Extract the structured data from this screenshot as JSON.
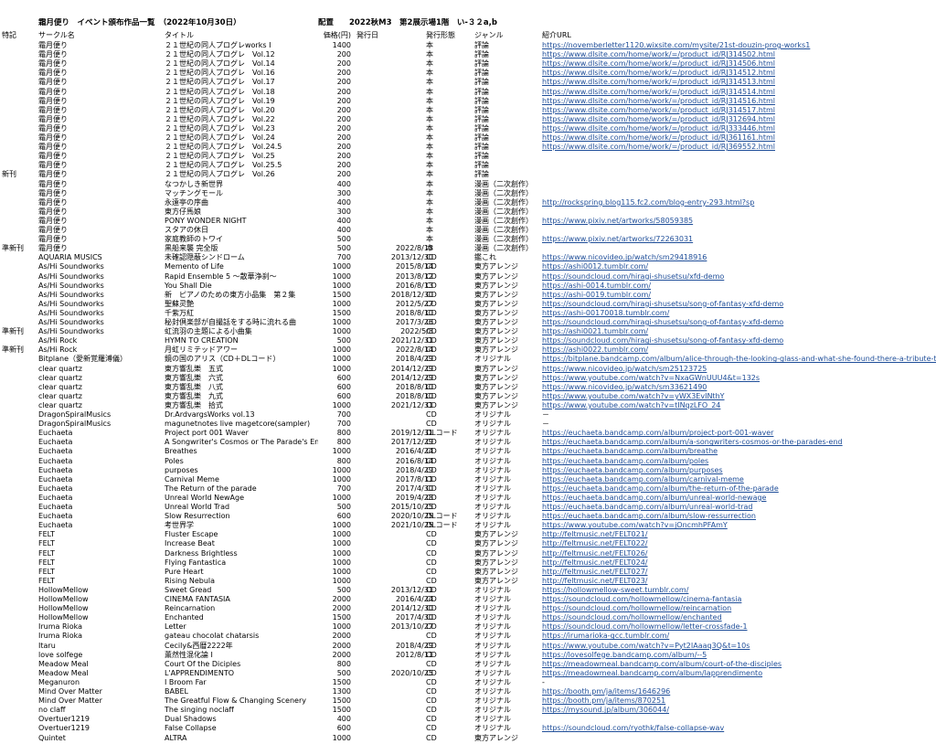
{
  "header": {
    "title": "霜月便り　イベント頒布作品一覧　（2022年10月30日）",
    "venue": "配置　　2022秋M3　第2展示場1階　い-３２a,b"
  },
  "columns": [
    "特記",
    "サークル名",
    "タイトル",
    "価格(円)",
    "発行日",
    "発行形態",
    "ジャンル",
    "紹介URL"
  ],
  "rows": [
    [
      "",
      "霜月便り",
      "２１世紀の同人プログレworks I",
      "1400",
      "",
      "本",
      "評論",
      "https://novemberletter1120.wixsite.com/mysite/21st-douzin-prog-works1"
    ],
    [
      "",
      "霜月便り",
      "２１世紀の同人プログレ　Vol.12",
      "200",
      "",
      "本",
      "評論",
      "https://www.dlsite.com/home/work/=/product_id/RJ314502.html"
    ],
    [
      "",
      "霜月便り",
      "２１世紀の同人プログレ　Vol.14",
      "200",
      "",
      "本",
      "評論",
      "https://www.dlsite.com/home/work/=/product_id/RJ314506.html"
    ],
    [
      "",
      "霜月便り",
      "２１世紀の同人プログレ　Vol.16",
      "200",
      "",
      "本",
      "評論",
      "https://www.dlsite.com/home/work/=/product_id/RJ314512.html"
    ],
    [
      "",
      "霜月便り",
      "２１世紀の同人プログレ　Vol.17",
      "200",
      "",
      "本",
      "評論",
      "https://www.dlsite.com/home/work/=/product_id/RJ314513.html"
    ],
    [
      "",
      "霜月便り",
      "２１世紀の同人プログレ　Vol.18",
      "200",
      "",
      "本",
      "評論",
      "https://www.dlsite.com/home/work/=/product_id/RJ314514.html"
    ],
    [
      "",
      "霜月便り",
      "２１世紀の同人プログレ　Vol.19",
      "200",
      "",
      "本",
      "評論",
      "https://www.dlsite.com/home/work/=/product_id/RJ314516.html"
    ],
    [
      "",
      "霜月便り",
      "２１世紀の同人プログレ　Vol.20",
      "200",
      "",
      "本",
      "評論",
      "https://www.dlsite.com/home/work/=/product_id/RJ314517.html"
    ],
    [
      "",
      "霜月便り",
      "２１世紀の同人プログレ　Vol.22",
      "200",
      "",
      "本",
      "評論",
      "https://www.dlsite.com/home/work/=/product_id/RJ312694.html"
    ],
    [
      "",
      "霜月便り",
      "２１世紀の同人プログレ　Vol.23",
      "200",
      "",
      "本",
      "評論",
      "https://www.dlsite.com/home/work/=/product_id/RJ333446.html"
    ],
    [
      "",
      "霜月便り",
      "２１世紀の同人プログレ　Vol.24",
      "200",
      "",
      "本",
      "評論",
      "https://www.dlsite.com/home/work/=/product_id/RJ361161.html"
    ],
    [
      "",
      "霜月便り",
      "２１世紀の同人プログレ　Vol.24.5",
      "200",
      "",
      "本",
      "評論",
      "https://www.dlsite.com/home/work/=/product_id/RJ369552.html"
    ],
    [
      "",
      "霜月便り",
      "２１世紀の同人プログレ　Vol.25",
      "200",
      "",
      "本",
      "評論",
      ""
    ],
    [
      "",
      "霜月便り",
      "２１世紀の同人プログレ　Vol.25.5",
      "200",
      "",
      "本",
      "評論",
      ""
    ],
    [
      "新刊",
      "霜月便り",
      "２１世紀の同人プログレ　Vol.26",
      "200",
      "",
      "本",
      "評論",
      ""
    ],
    [
      "",
      "霜月便り",
      "なつかしき新世界",
      "400",
      "",
      "本",
      "漫画（二次創作）",
      ""
    ],
    [
      "",
      "霜月便り",
      "マッチングモール",
      "300",
      "",
      "本",
      "漫画（二次創作）",
      ""
    ],
    [
      "",
      "霜月便り",
      "永遠亭の序曲",
      "400",
      "",
      "本",
      "漫画（二次創作）",
      "http://rockspring.blog115.fc2.com/blog-entry-293.html?sp"
    ],
    [
      "",
      "霜月便り",
      "東方仔馬娘",
      "300",
      "",
      "本",
      "漫画（二次創作）",
      ""
    ],
    [
      "",
      "霜月便り",
      "PONY WONDER NIGHT",
      "400",
      "",
      "本",
      "漫画（二次創作）",
      "https://www.pixiv.net/artworks/58059385"
    ],
    [
      "",
      "霜月便り",
      "スタアの休日",
      "400",
      "",
      "本",
      "漫画（二次創作）",
      ""
    ],
    [
      "",
      "霜月便り",
      "家庭教師のトワイ",
      "500",
      "",
      "本",
      "漫画（二次創作）",
      "https://www.pixiv.net/artworks/72263031"
    ],
    [
      "準新刊",
      "霜月便り",
      "黒船来襲 完全版",
      "500",
      "2022/8/13",
      "本",
      "漫画（二次創作）",
      ""
    ],
    [
      "",
      "AQUARIA MUSICS",
      "未確認隠蔽シンドローム",
      "700",
      "2013/12/30",
      "CD",
      "鑑これ",
      "https://www.nicovideo.jp/watch/sm29418916"
    ],
    [
      "",
      "As/Hi Soundworks",
      "Memento of Life",
      "1000",
      "2015/8/14",
      "CD",
      "東方アレンジ",
      "https://ashi0012.tumblr.com/"
    ],
    [
      "",
      "As/Hi Soundworks",
      "Rapid Ensemble 5 ～散華浄刹～",
      "1000",
      "2013/8/12",
      "CD",
      "東方アレンジ",
      "https://soundcloud.com/hiragi-shusetsu/xfd-demo"
    ],
    [
      "",
      "As/Hi Soundworks",
      "You Shall Die",
      "1000",
      "2016/8/13",
      "CD",
      "東方アレンジ",
      "https://ashi-0014.tumblr.com/"
    ],
    [
      "",
      "As/Hi Soundworks",
      "新　ピアノのための東方小品集　第２集",
      "1500",
      "2018/12/30",
      "CD",
      "東方アレンジ",
      "https://ashi-0019.tumblr.com/"
    ],
    [
      "",
      "As/Hi Soundworks",
      "聖蘇灵艶",
      "1000",
      "2012/5/27",
      "CD",
      "東方アレンジ",
      "https://soundcloud.com/hiragi-shusetsu/song-of-fantasy-xfd-demo"
    ],
    [
      "",
      "As/Hi Soundworks",
      "千紫万紅",
      "1500",
      "2018/8/10",
      "CD",
      "東方アレンジ",
      "https://ashi-00170018.tumblr.com/"
    ],
    [
      "",
      "As/Hi Soundworks",
      "秘封倶楽部が自撮話をする時に流れる曲",
      "1000",
      "2017/3/26",
      "CD",
      "東方アレンジ",
      "https://soundcloud.com/hiragi-shusetsu/song-of-fantasy-xfd-demo"
    ],
    [
      "準新刊",
      "As/Hi Soundworks",
      "虹流羽の主題による小曲集",
      "1000",
      "2022/5/8",
      "CD",
      "東方アレンジ",
      "https://ashi0021.tumblr.com/"
    ],
    [
      "",
      "As/Hi Rock",
      "HYMN TO CREATION",
      "500",
      "2021/12/31",
      "CD",
      "東方アレンジ",
      "https://soundcloud.com/hiragi-shusetsu/song-of-fantasy-xfd-demo"
    ],
    [
      "準新刊",
      "As/Hi Rock",
      "月虹リミテッドアワー",
      "1000",
      "2022/8/14",
      "CD",
      "東方アレンジ",
      "https://ashi0022.tumblr.com/"
    ],
    [
      "",
      "Bitplane（愛新覚羅溥儀）",
      "鏡の国のアリス（CD＋DLコード）",
      "1000",
      "2018/4/29",
      "CD",
      "オリジナル",
      "https://bitplane.bandcamp.com/album/alice-through-the-looking-glass-and-what-she-found-there-a-tribute-to"
    ],
    [
      "",
      "clear quartz",
      "東方響乱樂　五式",
      "1000",
      "2014/12/29",
      "CD",
      "東方アレンジ",
      "https://www.nicovideo.jp/watch/sm25123725"
    ],
    [
      "",
      "clear quartz",
      "東方響乱樂　六式",
      "600",
      "2014/12/29",
      "CD",
      "東方アレンジ",
      "https://www.youtube.com/watch?v=NxaGWnUUU4&t=132s"
    ],
    [
      "",
      "clear quartz",
      "東方響乱樂　八式",
      "600",
      "2018/8/10",
      "CD",
      "東方アレンジ",
      "https://www.nicovideo.jp/watch/sm33621490"
    ],
    [
      "",
      "clear quartz",
      "東方響乱樂　九式",
      "600",
      "2018/8/10",
      "CD",
      "東方アレンジ",
      "https://www.youtube.com/watch?v=yWX3EvINthY"
    ],
    [
      "",
      "clear quartz",
      "東方響乱樂　拾式",
      "1000",
      "2021/12/31",
      "CD",
      "東方アレンジ",
      "https://www.youtube.com/watch?v=tINqzLFO_24"
    ],
    [
      "",
      "DragonSpiralMusics",
      "Dr.ArdvargsWorks vol.13",
      "700",
      "",
      "CD",
      "オリジナル",
      "－"
    ],
    [
      "",
      "DragonSpiralMusics",
      "magunetnotes live magetcore(sampler)",
      "700",
      "",
      "CD",
      "オリジナル",
      "－"
    ],
    [
      "",
      "Euchaeta",
      "Project port 001 Waver",
      "800",
      "2019/12/31",
      "DLコード",
      "オリジナル",
      "https://euchaeta.bandcamp.com/album/project-port-001-waver"
    ],
    [
      "",
      "Euchaeta",
      "A Songwriter's Cosmos or The Parade's En",
      "800",
      "2017/12/29",
      "CD",
      "オリジナル",
      "https://euchaeta.bandcamp.com/album/a-songwriters-cosmos-or-the-parades-end"
    ],
    [
      "",
      "Euchaeta",
      "Breathes",
      "1000",
      "2016/4/24",
      "CD",
      "オリジナル",
      "https://euchaeta.bandcamp.com/album/breathe"
    ],
    [
      "",
      "Euchaeta",
      "Poles",
      "800",
      "2016/8/14",
      "CD",
      "オリジナル",
      "https://euchaeta.bandcamp.com/album/poles"
    ],
    [
      "",
      "Euchaeta",
      "purposes",
      "1000",
      "2018/4/29",
      "CD",
      "オリジナル",
      "https://euchaeta.bandcamp.com/album/purposes"
    ],
    [
      "",
      "Euchaeta",
      "Carnival Meme",
      "1000",
      "2017/8/11",
      "CD",
      "オリジナル",
      "https://euchaeta.bandcamp.com/album/carnival-meme"
    ],
    [
      "",
      "Euchaeta",
      "The Return of the parade",
      "700",
      "2017/4/30",
      "CD",
      "オリジナル",
      "https://euchaeta.bandcamp.com/album/the-return-of-the-parade"
    ],
    [
      "",
      "Euchaeta",
      "Unreal World NewAge",
      "1000",
      "2019/4/28",
      "CD",
      "オリジナル",
      "https://euchaeta.bandcamp.com/album/unreal-world-newage"
    ],
    [
      "",
      "Euchaeta",
      "Unreal World Trad",
      "500",
      "2015/10/25",
      "CD",
      "オリジナル",
      "https://euchaeta.bandcamp.com/album/unreal-world-trad"
    ],
    [
      "",
      "Euchaeta",
      "Slow Resurrection",
      "600",
      "2020/10/25",
      "DLコード",
      "オリジナル",
      "https://euchaeta.bandcamp.com/album/slow-ressurrection"
    ],
    [
      "",
      "Euchaeta",
      "考世界学",
      "1000",
      "2021/10/25",
      "DLコード",
      "オリジナル",
      "https://www.youtube.com/watch?v=jOncmhPFAmY"
    ],
    [
      "",
      "FELT",
      "Fluster Escape",
      "1000",
      "",
      "CD",
      "東方アレンジ",
      "http://feltmusic.net/FELT021/"
    ],
    [
      "",
      "FELT",
      "Increase Beat",
      "1000",
      "",
      "CD",
      "東方アレンジ",
      "http://feltmusic.net/FELT022/"
    ],
    [
      "",
      "FELT",
      "Darkness Brightless",
      "1000",
      "",
      "CD",
      "東方アレンジ",
      "http://feltmusic.net/FELT026/"
    ],
    [
      "",
      "FELT",
      "Flying Fantastica",
      "1000",
      "",
      "CD",
      "東方アレンジ",
      "http://feltmusic.net/FELT024/"
    ],
    [
      "",
      "FELT",
      "Pure Heart",
      "1000",
      "",
      "CD",
      "東方アレンジ",
      "http://feltmusic.net/FELT027/"
    ],
    [
      "",
      "FELT",
      "Rising Nebula",
      "1000",
      "",
      "CD",
      "東方アレンジ",
      "http://feltmusic.net/FELT023/"
    ],
    [
      "",
      "HollowMellow",
      "Sweet Gread",
      "500",
      "2013/12/31",
      "CD",
      "オリジナル",
      "https://hollowmellow-sweet.tumblr.com/"
    ],
    [
      "",
      "HollowMellow",
      "CINEMA FANTASIA",
      "2000",
      "2016/4/24",
      "CD",
      "オリジナル",
      "https://soundcloud.com/hollowmellow/cinema-fantasia"
    ],
    [
      "",
      "HollowMellow",
      "Reincarnation",
      "2000",
      "2014/12/30",
      "CD",
      "オリジナル",
      "https://soundcloud.com/hollowmellow/reincarnation"
    ],
    [
      "",
      "HollowMellow",
      "Enchanted",
      "1500",
      "2017/4/30",
      "CD",
      "オリジナル",
      "https://soundcloud.com/hollowmellow/enchanted"
    ],
    [
      "",
      "Iruma Rioka",
      "Letter",
      "1000",
      "2013/10/27",
      "CD",
      "オリジナル",
      "https://soundcloud.com/hollowmellow/letter-crossfade-1"
    ],
    [
      "",
      "Iruma Rioka",
      "gateau chocolat chatarsis",
      "2000",
      "",
      "CD",
      "オリジナル",
      "https://irumarioka-gcc.tumblr.com/"
    ],
    [
      "",
      "Itaru",
      "Cecily&西暦2222年",
      "2000",
      "2018/4/29",
      "CD",
      "オリジナル",
      "https://www.youtube.com/watch?v=Pyt2IAaaq3Q&t=10s"
    ],
    [
      "",
      "love solfege",
      "薫然性混化論 I",
      "2000",
      "2012/8/11",
      "CD",
      "オリジナル",
      "https://lovesolfege.bandcamp.com/album/--5"
    ],
    [
      "",
      "Meadow Meal",
      "Court Of the Diciples",
      "800",
      "",
      "CD",
      "オリジナル",
      "https://meadowmeal.bandcamp.com/album/court-of-the-disciples"
    ],
    [
      "",
      "Meadow Meal",
      "L'APPRENDIMENTO",
      "500",
      "2020/10/25",
      "CD",
      "オリジナル",
      "https://meadowmeal.bandcamp.com/album/lapprendimento"
    ],
    [
      "",
      "Meganuron",
      "I Broom Far",
      "1500",
      "",
      "CD",
      "オリジナル",
      "-"
    ],
    [
      "",
      "Mind Over Matter",
      "BABEL",
      "1300",
      "",
      "CD",
      "オリジナル",
      "https://booth.pm/ja/items/1646296"
    ],
    [
      "",
      "Mind Over Matter",
      "The Greatful Flow & Changing Scenery",
      "1500",
      "",
      "CD",
      "オリジナル",
      "https://booth.pm/ja/items/870251"
    ],
    [
      "",
      "no claff",
      "The singing noclaff",
      "1500",
      "",
      "CD",
      "オリジナル",
      "https://mysound.jp/album/306044/"
    ],
    [
      "",
      "Overtuer1219",
      "Dual Shadows",
      "400",
      "",
      "CD",
      "オリジナル",
      ""
    ],
    [
      "",
      "Overtuer1219",
      "False Collapse",
      "600",
      "",
      "CD",
      "オリジナル",
      "https://soundcloud.com/ryothk/false-collapse-wav"
    ],
    [
      "",
      "Quintet",
      "ALTRA",
      "1000",
      "",
      "CD",
      "東方アレンジ",
      ""
    ]
  ]
}
